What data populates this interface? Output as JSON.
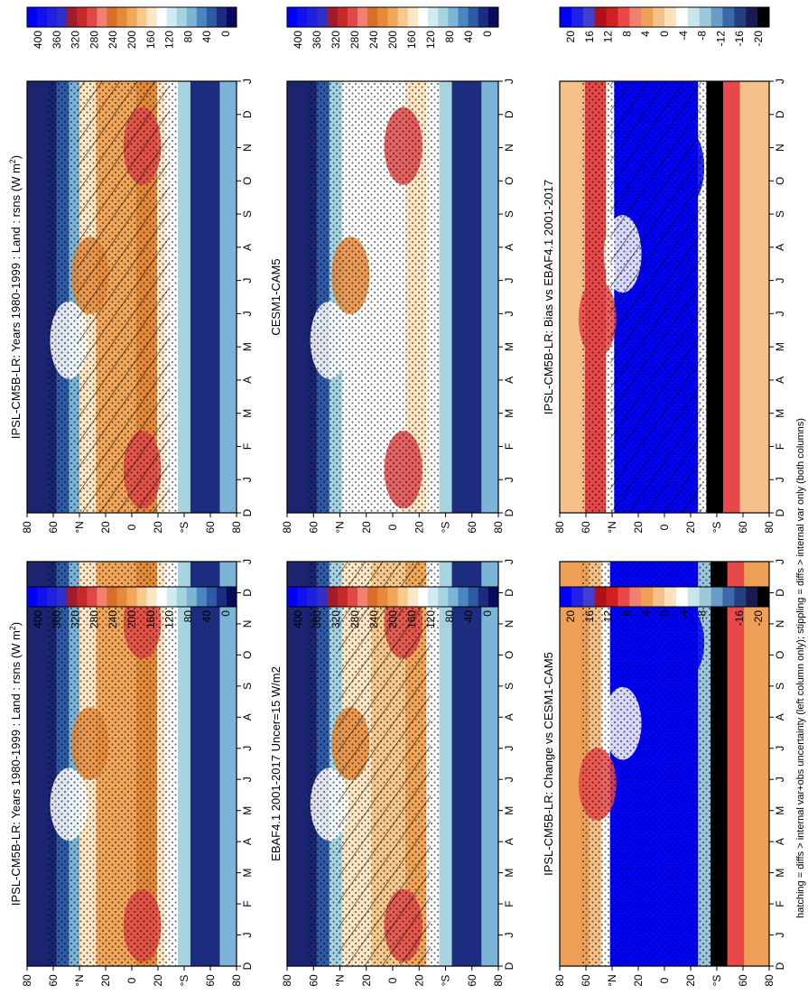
{
  "figure": {
    "footnote": "hatching = diffs > internal var+obs uncertainty (left column only); stippling = diffs > internal var only (both columns)"
  },
  "colors": {
    "abs_scale": [
      "#0a0a5a",
      "#1c2c7e",
      "#2e5aa6",
      "#4a86c0",
      "#7cb4d6",
      "#a6d3e0",
      "#cfeaf0",
      "#ffffff",
      "#fde6c4",
      "#f7c98c",
      "#f1a65a",
      "#e58a3a",
      "#d96e2a",
      "#f08070",
      "#e04848",
      "#c82828",
      "#a01c2a",
      "#3030c8",
      "#2020e0",
      "#1010f0",
      "#0000ff"
    ],
    "diff_scale": [
      "#000000",
      "#1a1a50",
      "#25407e",
      "#3c6aa8",
      "#6a9cc8",
      "#9cc8dc",
      "#c8e6ec",
      "#ffffff",
      "#fbe0bc",
      "#f5c08a",
      "#eea058",
      "#f08070",
      "#e84848",
      "#d02020",
      "#b01018",
      "#4040d0",
      "#2020e8",
      "#0000ff"
    ]
  },
  "chart_data": [
    {
      "type": "heatmap",
      "title": "IPSL-CM5B-LR: Years 1980-1999 : Land : rsns (W m",
      "title_sup": "2",
      "title_end": ")",
      "x_ticks": [
        "D",
        "J",
        "F",
        "M",
        "A",
        "M",
        "J",
        "J",
        "A",
        "S",
        "O",
        "N",
        "D",
        "J"
      ],
      "y_ticks": [
        "80",
        "60",
        "°N",
        "20",
        "0",
        "20",
        "°S",
        "60",
        "80"
      ],
      "colorbar_ticks": [
        "400",
        "360",
        "320",
        "280",
        "240",
        "200",
        "160",
        "120",
        "80",
        "40",
        "0"
      ],
      "overlay": "hatching+stippling",
      "field": "abs"
    },
    {
      "type": "heatmap",
      "title": "IPSL-CM5B-LR: Years 1980-1999 : Land : rsns (W m",
      "title_sup": "2",
      "title_end": ")",
      "x_ticks": [
        "D",
        "J",
        "F",
        "M",
        "A",
        "M",
        "J",
        "J",
        "A",
        "S",
        "O",
        "N",
        "D",
        "J"
      ],
      "y_ticks": [
        "80",
        "60",
        "°N",
        "20",
        "0",
        "20",
        "°S",
        "60",
        "80"
      ],
      "colorbar_ticks": [
        "400",
        "360",
        "320",
        "280",
        "240",
        "200",
        "160",
        "120",
        "80",
        "40",
        "0"
      ],
      "overlay": "stippling",
      "field": "abs"
    },
    {
      "type": "heatmap",
      "title": "EBAF4.1 2001-2017 Uncer=15 W/m2",
      "x_ticks": [
        "D",
        "J",
        "F",
        "M",
        "A",
        "M",
        "J",
        "J",
        "A",
        "S",
        "O",
        "N",
        "D",
        "J"
      ],
      "y_ticks": [
        "80",
        "60",
        "°N",
        "20",
        "0",
        "20",
        "°S",
        "60",
        "80"
      ],
      "colorbar_ticks": [
        "400",
        "360",
        "320",
        "280",
        "240",
        "200",
        "160",
        "120",
        "80",
        "40",
        "0"
      ],
      "overlay": "hatching+stippling",
      "field": "abs_obs"
    },
    {
      "type": "heatmap",
      "title": "CESM1-CAM5",
      "x_ticks": [
        "D",
        "J",
        "F",
        "M",
        "A",
        "M",
        "J",
        "J",
        "A",
        "S",
        "O",
        "N",
        "D",
        "J"
      ],
      "y_ticks": [
        "80",
        "60",
        "°N",
        "20",
        "0",
        "20",
        "°S",
        "60",
        "80"
      ],
      "colorbar_ticks": [
        "400",
        "360",
        "320",
        "280",
        "240",
        "200",
        "160",
        "120",
        "80",
        "40",
        "0"
      ],
      "overlay": "stippling",
      "field": "abs_model2"
    },
    {
      "type": "heatmap",
      "title": "IPSL-CM5B-LR: Bias vs EBAF4.1 2001-2017",
      "x_ticks": [
        "D",
        "J",
        "F",
        "M",
        "A",
        "M",
        "J",
        "J",
        "A",
        "S",
        "O",
        "N",
        "D",
        "J"
      ],
      "y_ticks": [
        "80",
        "60",
        "°N",
        "20",
        "0",
        "20",
        "°S",
        "60",
        "80"
      ],
      "colorbar_ticks": [
        "20",
        "16",
        "12",
        "8",
        "4",
        "0",
        "-4",
        "-8",
        "-12",
        "-16",
        "-20"
      ],
      "overlay": "hatching+stippling",
      "field": "bias"
    },
    {
      "type": "heatmap",
      "title": "IPSL-CM5B-LR: Change vs CESM1-CAM5",
      "x_ticks": [
        "D",
        "J",
        "F",
        "M",
        "A",
        "M",
        "J",
        "J",
        "A",
        "S",
        "O",
        "N",
        "D",
        "J"
      ],
      "y_ticks": [
        "80",
        "60",
        "°N",
        "20",
        "0",
        "20",
        "°S",
        "60",
        "80"
      ],
      "colorbar_ticks": [
        "20",
        "16",
        "12",
        "8",
        "4",
        "0",
        "-4",
        "-8",
        "-12",
        "-16",
        "-20"
      ],
      "overlay": "stippling",
      "field": "change"
    }
  ]
}
